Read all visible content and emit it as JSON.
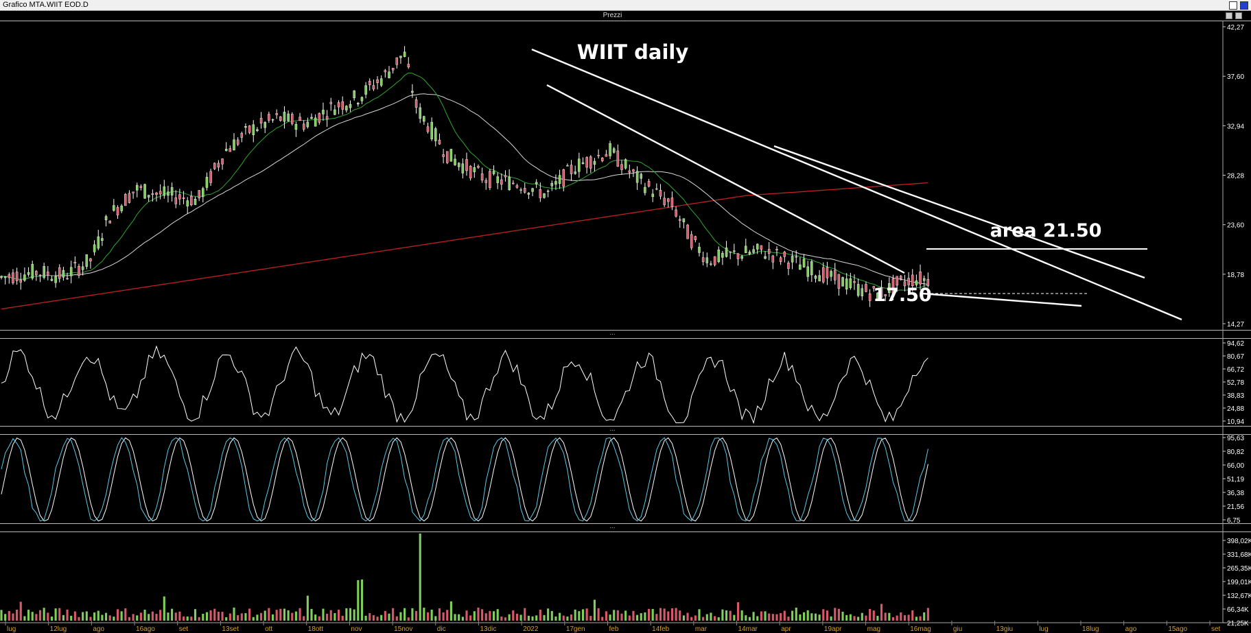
{
  "window": {
    "title": "Grafico MTA.WIIT EOD.D"
  },
  "panes": {
    "price_label": "Prezzi",
    "separator_glyph": "..."
  },
  "annotations": {
    "title": "WIIT daily",
    "area": "area 21.50",
    "support": "17.50"
  },
  "price_axis": [
    "42,27",
    "37,60",
    "32,94",
    "28,28",
    "23,60",
    "18,78",
    "14,27"
  ],
  "rsi_axis": [
    "94,62",
    "80,67",
    "66,72",
    "52,78",
    "38,83",
    "24,88",
    "10,94"
  ],
  "stoch_axis": [
    "95,63",
    "80,82",
    "66,00",
    "51,19",
    "36,38",
    "21,56",
    "6,75"
  ],
  "volume_axis": [
    "398,02K",
    "331,68K",
    "265,35K",
    "199,01K",
    "132,67K",
    "66,34K",
    "21,25K"
  ],
  "date_axis": [
    "lug",
    "12lug",
    "ago",
    "16ago",
    "set",
    "13set",
    "ott",
    "18ott",
    "nov",
    "15nov",
    "dic",
    "13dic",
    "2022",
    "17gen",
    "feb",
    "14feb",
    "mar",
    "14mar",
    "apr",
    "19apr",
    "mag",
    "16mag",
    "giu",
    "13giu",
    "lug",
    "18lug",
    "ago",
    "15ago",
    "set"
  ],
  "colors": {
    "up": "#7fd05a",
    "down": "#d85a6a",
    "ma_fast": "#2fa82f",
    "ma_slow": "#d8d8d8",
    "ma_long": "#c02020",
    "stoch_k": "#5fc8e8",
    "axis_date": "#d4a020"
  }
}
